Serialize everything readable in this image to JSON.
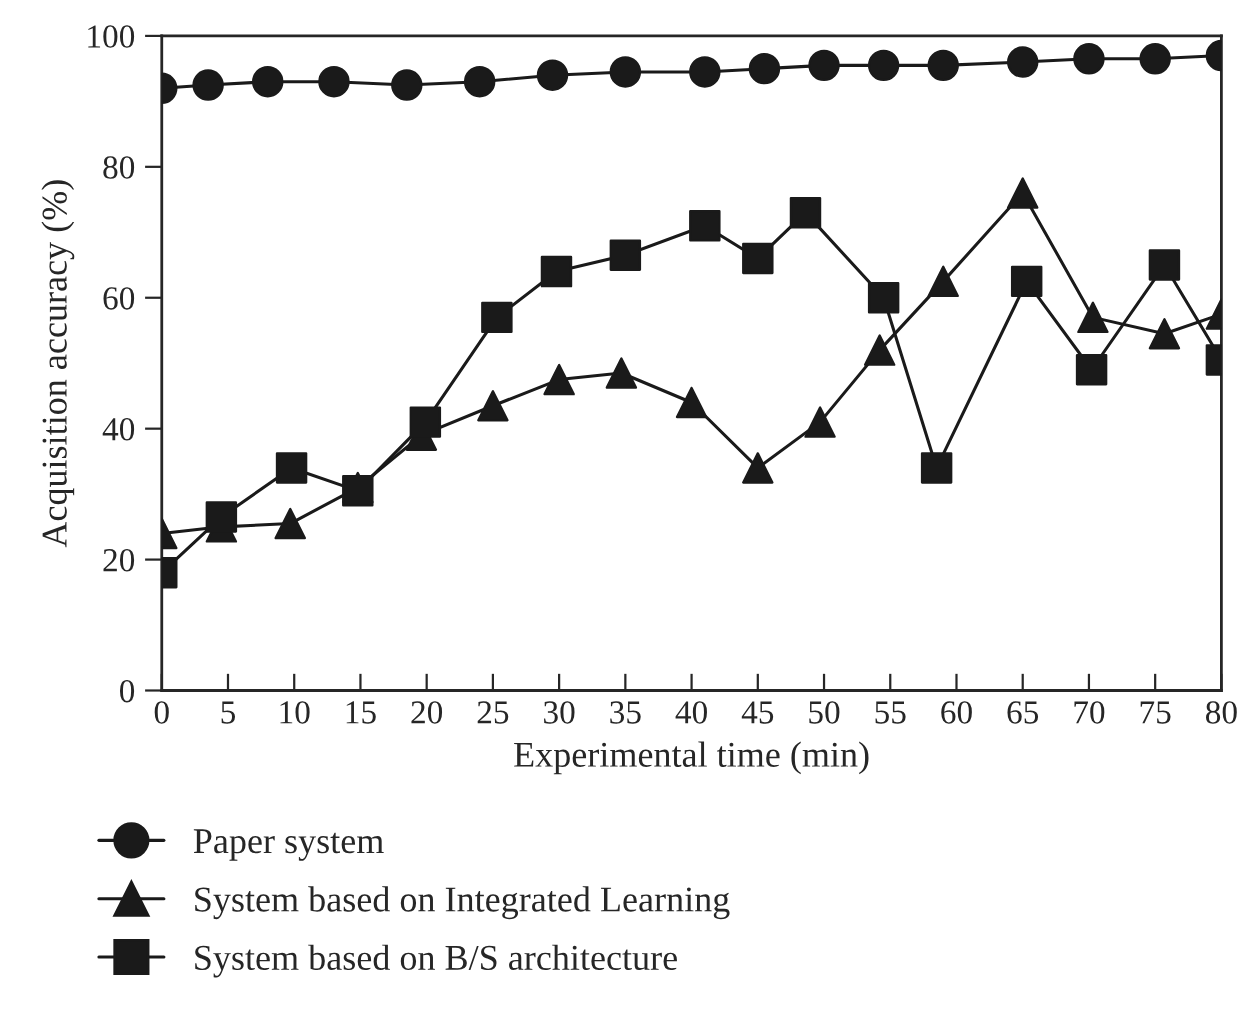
{
  "chart_data": {
    "type": "line",
    "xlabel": "Experimental time (min)",
    "ylabel": "Acquisition accuracy (%)",
    "xlim": [
      0,
      80
    ],
    "ylim": [
      0,
      100
    ],
    "xticks": [
      0,
      5,
      10,
      15,
      20,
      25,
      30,
      35,
      40,
      45,
      50,
      55,
      60,
      65,
      70,
      75,
      80
    ],
    "yticks": [
      0,
      20,
      40,
      60,
      80,
      100
    ],
    "grid": false,
    "legend": "bottom",
    "line_style": "solid",
    "series": [
      {
        "name": "Paper system",
        "color": "#1a1a1a",
        "marker": "circle",
        "x": [
          0,
          3.5,
          8,
          13,
          18.5,
          24,
          29.5,
          35,
          41,
          45.5,
          50,
          54.5,
          59,
          65,
          70,
          75,
          80
        ],
        "values": [
          92,
          92.5,
          93,
          93,
          92.5,
          93,
          94,
          94.5,
          94.5,
          95,
          95.5,
          95.5,
          95.5,
          96,
          96.5,
          96.5,
          97
        ]
      },
      {
        "name": "System based on Integrated Learning",
        "color": "#1a1a1a",
        "marker": "triangle",
        "x": [
          0,
          4.5,
          9.7,
          14.8,
          19.6,
          25,
          30,
          34.7,
          40,
          45,
          49.7,
          54.2,
          59,
          65,
          70.3,
          75.7,
          80
        ],
        "values": [
          24,
          25,
          25.5,
          31,
          39,
          43.5,
          47.5,
          48.5,
          44,
          34,
          41,
          52,
          62.5,
          76,
          57,
          54.5,
          57.5
        ]
      },
      {
        "name": "System based on B/S architecture",
        "color": "#1a1a1a",
        "marker": "square",
        "x": [
          0,
          4.5,
          9.8,
          14.8,
          19.9,
          25.3,
          29.8,
          35,
          41,
          45,
          48.6,
          54.5,
          58.5,
          65.3,
          70.2,
          75.7,
          80
        ],
        "values": [
          18,
          26.5,
          34,
          30.5,
          41,
          57,
          64,
          66.5,
          71,
          66,
          73,
          60,
          34,
          62.5,
          49,
          65,
          50.5
        ]
      }
    ]
  }
}
